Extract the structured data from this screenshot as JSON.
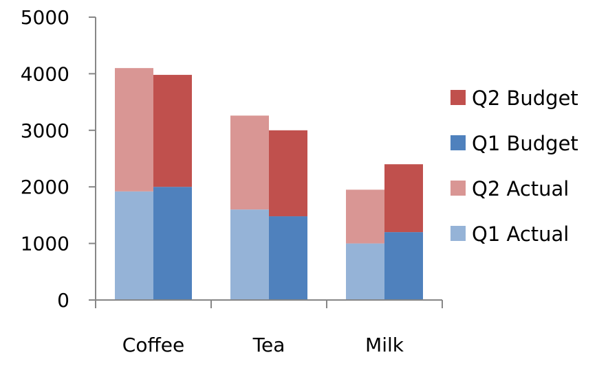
{
  "chart_data": {
    "type": "bar",
    "stacked": true,
    "grid": false,
    "legend_position": "right",
    "categories": [
      "Coffee",
      "Tea",
      "Milk"
    ],
    "ylim": [
      0,
      5000
    ],
    "y_ticks": [
      "0",
      "1000",
      "2000",
      "3000",
      "4000",
      "5000"
    ],
    "stacks": [
      {
        "id": "actual",
        "series": [
          {
            "name": "Q1 Actual",
            "color": "#95b3d7",
            "values": [
              1920,
              1600,
              1000
            ]
          },
          {
            "name": "Q2 Actual",
            "color": "#d99694",
            "values": [
              2180,
              1660,
              950
            ]
          }
        ]
      },
      {
        "id": "budget",
        "series": [
          {
            "name": "Q1 Budget",
            "color": "#4f81bd",
            "values": [
              2000,
              1480,
              1200
            ]
          },
          {
            "name": "Q2 Budget",
            "color": "#c0504d",
            "values": [
              1980,
              1520,
              1200
            ]
          }
        ]
      }
    ],
    "legend": [
      {
        "name": "Q2 Budget",
        "color": "#c0504d"
      },
      {
        "name": "Q1 Budget",
        "color": "#4f81bd"
      },
      {
        "name": "Q2 Actual",
        "color": "#d99694"
      },
      {
        "name": "Q1 Actual",
        "color": "#95b3d7"
      }
    ]
  }
}
